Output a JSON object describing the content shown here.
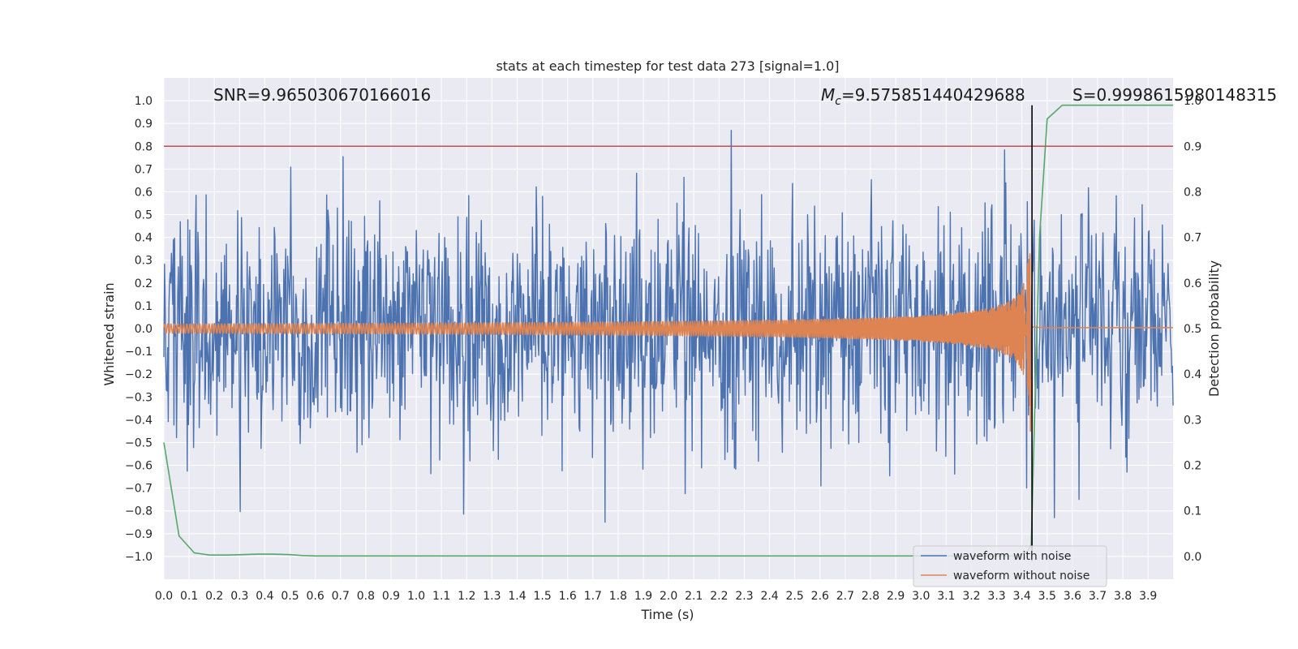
{
  "chart_data": {
    "type": "line",
    "title": "stats at each timestep for test data 273 [signal=1.0]",
    "xlabel": "Time (s)",
    "ylabel": "Whitened strain",
    "y2label": "Detection probability",
    "xlim": [
      0.0,
      3.999
    ],
    "ylim": [
      -1.1,
      1.1
    ],
    "y2lim": [
      -0.05,
      1.05
    ],
    "x_ticks": [
      0.0,
      0.1,
      0.2,
      0.3,
      0.4,
      0.5,
      0.6,
      0.7,
      0.8,
      0.9,
      1.0,
      1.1,
      1.2,
      1.3,
      1.4,
      1.5,
      1.6,
      1.7,
      1.8,
      1.9,
      2.0,
      2.1,
      2.2,
      2.3,
      2.4,
      2.5,
      2.6,
      2.7,
      2.8,
      2.9,
      3.0,
      3.1,
      3.2,
      3.3,
      3.4,
      3.5,
      3.6,
      3.7,
      3.8,
      3.9
    ],
    "x_tick_labels": [
      "0.0",
      "0.1",
      "0.2",
      "0.3",
      "0.4",
      "0.5",
      "0.6",
      "0.7",
      "0.8",
      "0.9",
      "1.0",
      "1.1",
      "1.2",
      "1.3",
      "1.4",
      "1.5",
      "1.6",
      "1.7",
      "1.8",
      "1.9",
      "2.0",
      "2.1",
      "2.2",
      "2.3",
      "2.4",
      "2.5",
      "2.6",
      "2.7",
      "2.8",
      "2.9",
      "3.0",
      "3.1",
      "3.2",
      "3.3",
      "3.4",
      "3.5",
      "3.6",
      "3.7",
      "3.8",
      "3.9"
    ],
    "y_ticks": [
      1.0,
      0.9,
      0.8,
      0.7,
      0.6,
      0.5,
      0.4,
      0.3,
      0.2,
      0.1,
      0.0,
      -0.1,
      -0.2,
      -0.3,
      -0.4,
      -0.5,
      -0.6,
      -0.7,
      -0.8,
      -0.9,
      -1.0
    ],
    "y_tick_labels": [
      "1.0",
      "0.9",
      "0.8",
      "0.7",
      "0.6",
      "0.5",
      "0.4",
      "0.3",
      "0.2",
      "0.1",
      "0.0",
      "−0.1",
      "−0.2",
      "−0.3",
      "−0.4",
      "−0.5",
      "−0.6",
      "−0.7",
      "−0.8",
      "−0.9",
      "−1.0"
    ],
    "y2_ticks": [
      1.0,
      0.9,
      0.8,
      0.7,
      0.6,
      0.5,
      0.4,
      0.3,
      0.2,
      0.1,
      0.0
    ],
    "y2_tick_labels": [
      "1.0",
      "0.9",
      "0.8",
      "0.7",
      "0.6",
      "0.5",
      "0.4",
      "0.3",
      "0.2",
      "0.1",
      "0.0"
    ],
    "annotations": {
      "snr": "SNR=9.965030670166016",
      "mc_symbol": "M",
      "mc_sub": "c",
      "mc_value": "=9.575851440429688",
      "s": "S=0.9998615980148315"
    },
    "threshold": {
      "axis": "y2",
      "value": 0.9,
      "color": "#c44e52"
    },
    "merger_time": 3.44,
    "series": [
      {
        "name": "waveform with noise",
        "axis": "y",
        "color": "#4c72b0",
        "generator": "gaussian_noise",
        "t_start": 0.0,
        "t_end": 3.999,
        "n_points": 1600,
        "seed": 273,
        "sigma": 0.26
      },
      {
        "name": "waveform without noise",
        "axis": "y",
        "color": "#dd8452",
        "generator": "chirp",
        "t_start": 0.0,
        "t_end": 3.999,
        "n_points": 4000,
        "merger_time": 3.44,
        "amp_min": 0.02,
        "amp_max": 0.45,
        "ringdown_amp": 0.004
      },
      {
        "name": "detection probability",
        "axis": "y2",
        "color": "#55a868",
        "x": [
          0.0,
          0.06,
          0.12,
          0.18,
          0.25,
          0.31,
          0.37,
          0.43,
          0.5,
          0.55,
          0.6,
          0.7,
          0.8,
          1.0,
          1.5,
          2.0,
          2.5,
          3.0,
          3.2,
          3.3,
          3.38,
          3.42,
          3.437,
          3.45,
          3.47,
          3.5,
          3.56,
          3.62,
          3.7,
          3.8,
          3.9,
          3.999
        ],
        "y": [
          0.25,
          0.045,
          0.008,
          0.003,
          0.003,
          0.004,
          0.005,
          0.005,
          0.004,
          0.002,
          0.001,
          0.001,
          0.001,
          0.001,
          0.001,
          0.001,
          0.001,
          0.001,
          0.001,
          0.001,
          0.001,
          0.01,
          0.025,
          0.3,
          0.7,
          0.96,
          0.99,
          0.99,
          0.99,
          0.99,
          0.99,
          0.99
        ]
      }
    ],
    "legend": {
      "position": "lower-right",
      "entries": [
        {
          "label": "waveform with noise",
          "color": "#4c72b0"
        },
        {
          "label": "waveform without noise",
          "color": "#dd8452"
        }
      ]
    }
  }
}
